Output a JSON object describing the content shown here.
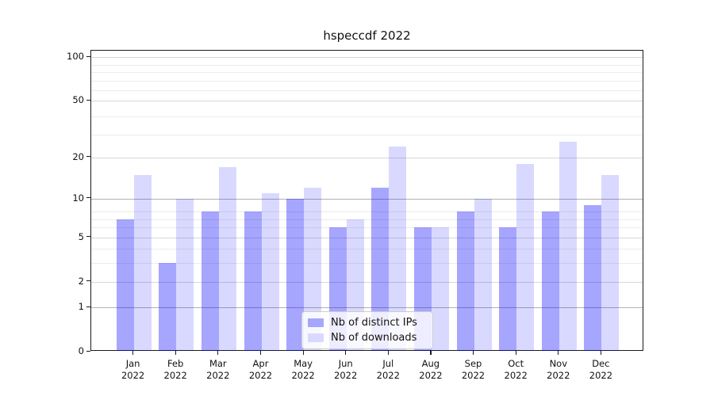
{
  "figure": {
    "title": "hspeccdf 2022"
  },
  "chart_data": {
    "type": "bar",
    "title": "hspeccdf 2022",
    "categories": [
      "Jan",
      "Feb",
      "Mar",
      "Apr",
      "May",
      "Jun",
      "Jul",
      "Aug",
      "Sep",
      "Oct",
      "Nov",
      "Dec"
    ],
    "category_year": "2022",
    "series": [
      {
        "name": "Nb of distinct IPs",
        "color": "#a6a6ff",
        "fill": "rgba(0,0,255,0.35)",
        "values": [
          7,
          3,
          8,
          8,
          10,
          6,
          12,
          6,
          8,
          6,
          8,
          9
        ]
      },
      {
        "name": "Nb of downloads",
        "color": "#d9d9ff",
        "fill": "rgba(0,0,255,0.15)",
        "values": [
          15,
          10,
          17,
          11,
          12,
          7,
          24,
          6,
          10,
          18,
          26,
          15
        ]
      }
    ],
    "yscale": "log1p",
    "yticks": [
      100,
      50,
      20,
      10,
      5,
      2,
      1,
      0
    ],
    "ylim": [
      0,
      112
    ],
    "grid": true,
    "legend_position": "lower-center"
  }
}
